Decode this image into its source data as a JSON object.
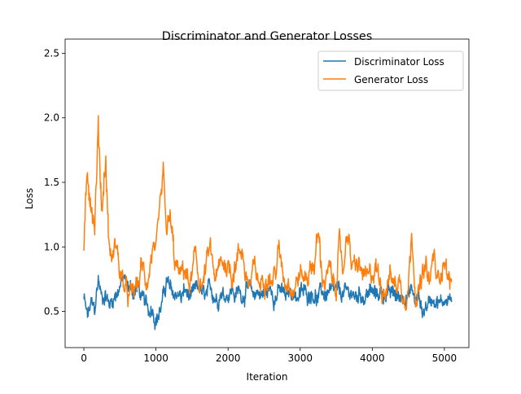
{
  "chart_data": {
    "type": "line",
    "title": "Discriminator and Generator Losses",
    "xlabel": "Iteration",
    "ylabel": "Loss",
    "xlim": [
      -260,
      5340
    ],
    "ylim": [
      0.22,
      2.61
    ],
    "xticks": [
      0,
      1000,
      2000,
      3000,
      4000,
      5000
    ],
    "xtick_labels": [
      "0",
      "1000",
      "2000",
      "3000",
      "4000",
      "5000"
    ],
    "yticks": [
      0.5,
      1.0,
      1.5,
      2.0,
      2.5
    ],
    "ytick_labels": [
      "0.5",
      "1.0",
      "1.5",
      "2.0",
      "2.5"
    ],
    "grid": false,
    "legend_position": "top-right",
    "x_step": 50,
    "x_start": 0,
    "series": [
      {
        "name": "Discriminator Loss",
        "color": "#1f77b4",
        "values": [
          0.6,
          0.45,
          0.55,
          0.5,
          0.75,
          0.6,
          0.65,
          0.55,
          0.6,
          0.65,
          0.7,
          0.75,
          0.7,
          0.68,
          0.65,
          0.7,
          0.6,
          0.55,
          0.5,
          0.55,
          0.45,
          0.5,
          0.6,
          0.75,
          0.65,
          0.62,
          0.65,
          0.6,
          0.66,
          0.62,
          0.6,
          0.65,
          0.68,
          0.62,
          0.6,
          0.66,
          0.64,
          0.6,
          0.67,
          0.63,
          0.65,
          0.68,
          0.62,
          0.66,
          0.63,
          0.68,
          0.65,
          0.62,
          0.66,
          0.64,
          0.63,
          0.65,
          0.67,
          0.62,
          0.66,
          0.65,
          0.6,
          0.64,
          0.66,
          0.62,
          0.63,
          0.65,
          0.62,
          0.67,
          0.64,
          0.6,
          0.65,
          0.63,
          0.66,
          0.62,
          0.65,
          0.62,
          0.64,
          0.63,
          0.66,
          0.6,
          0.63,
          0.65,
          0.61,
          0.66,
          0.64,
          0.62,
          0.65,
          0.63,
          0.66,
          0.62,
          0.64,
          0.6,
          0.62,
          0.64,
          0.63,
          0.66,
          0.58,
          0.6,
          0.5,
          0.55,
          0.58,
          0.62,
          0.6,
          0.55,
          0.6,
          0.62,
          0.58
        ]
      },
      {
        "name": "Generator Loss",
        "color": "#ff7f0e",
        "values": [
          1.0,
          1.5,
          1.4,
          1.2,
          1.9,
          1.3,
          1.7,
          1.0,
          0.9,
          1.05,
          0.8,
          0.7,
          0.6,
          0.6,
          0.65,
          0.7,
          0.85,
          0.75,
          0.8,
          1.0,
          0.85,
          1.2,
          1.5,
          1.1,
          1.2,
          0.9,
          0.8,
          0.75,
          0.85,
          0.7,
          0.75,
          0.9,
          0.75,
          0.7,
          0.85,
          0.95,
          0.8,
          0.75,
          0.85,
          0.9,
          0.85,
          0.8,
          0.9,
          0.95,
          1.0,
          0.75,
          0.7,
          0.8,
          0.75,
          0.7,
          0.8,
          0.85,
          0.75,
          0.8,
          0.95,
          0.85,
          0.75,
          0.8,
          0.7,
          0.75,
          0.8,
          0.75,
          0.8,
          0.85,
          0.9,
          1.1,
          0.8,
          0.75,
          0.8,
          0.7,
          0.75,
          1.0,
          0.8,
          1.2,
          0.9,
          0.8,
          0.85,
          0.8,
          0.75,
          0.7,
          0.8,
          0.85,
          0.75,
          0.7,
          0.75,
          0.8,
          0.7,
          0.75,
          0.7,
          0.65,
          0.75,
          1.1,
          0.7,
          0.65,
          0.75,
          0.8,
          0.7,
          0.95,
          0.7,
          0.85,
          0.95,
          0.75,
          0.7
        ]
      }
    ]
  }
}
